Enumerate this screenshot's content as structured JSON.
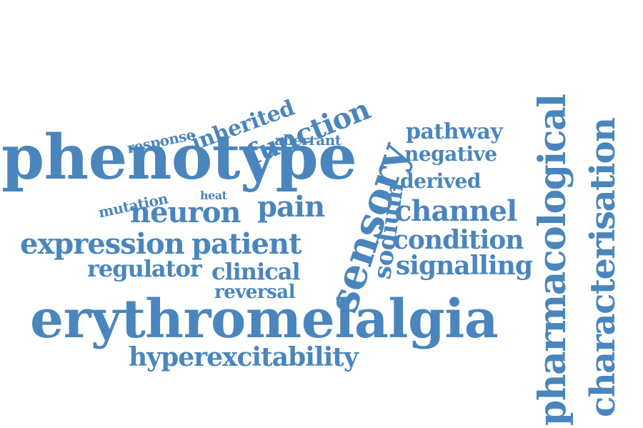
{
  "cloud": {
    "color": "#4a86bd",
    "words": [
      "phenotype",
      "erythromelalgia",
      "pharmacological",
      "characterisation",
      "sensory",
      "hyperexcitability",
      "expression",
      "patient",
      "neuron",
      "pain",
      "channel",
      "condition",
      "signalling",
      "function",
      "inherited",
      "response",
      "aberrant",
      "pathway",
      "negative",
      "derived",
      "sodium",
      "mutation",
      "heat",
      "regulator",
      "clinical",
      "reversal"
    ]
  }
}
